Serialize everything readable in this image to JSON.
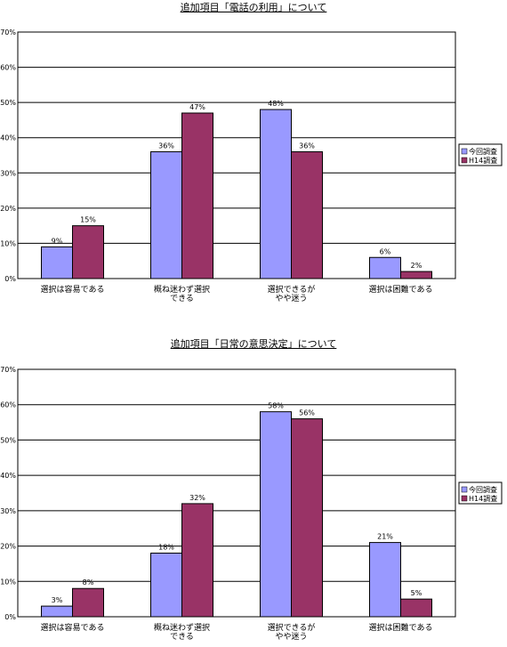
{
  "chart_data": [
    {
      "type": "bar",
      "title": "追加項目「電話の利用」について",
      "categories": [
        [
          "選択は容易である"
        ],
        [
          "概ね迷わず選択",
          "できる"
        ],
        [
          "選択できるが",
          "やや迷う"
        ],
        [
          "選択は困難である"
        ]
      ],
      "series": [
        {
          "name": "今回調査",
          "color": "#9999ff",
          "values": [
            9,
            36,
            48,
            6
          ]
        },
        {
          "name": "H14調査",
          "color": "#993366",
          "values": [
            15,
            47,
            36,
            2
          ]
        }
      ],
      "ylim": [
        0,
        70
      ],
      "yticks": [
        0,
        10,
        20,
        30,
        40,
        50,
        60,
        70
      ],
      "unit": "%",
      "grid": true,
      "legend": "right"
    },
    {
      "type": "bar",
      "title": "追加項目「日常の意思決定」について",
      "categories": [
        [
          "選択は容易である"
        ],
        [
          "概ね迷わず選択",
          "できる"
        ],
        [
          "選択できるが",
          "やや迷う"
        ],
        [
          "選択は困難である"
        ]
      ],
      "series": [
        {
          "name": "今回調査",
          "color": "#9999ff",
          "values": [
            3,
            18,
            58,
            21
          ]
        },
        {
          "name": "H14調査",
          "color": "#993366",
          "values": [
            8,
            32,
            56,
            5
          ]
        }
      ],
      "ylim": [
        0,
        70
      ],
      "yticks": [
        0,
        10,
        20,
        30,
        40,
        50,
        60,
        70
      ],
      "unit": "%",
      "grid": true,
      "legend": "right"
    }
  ]
}
